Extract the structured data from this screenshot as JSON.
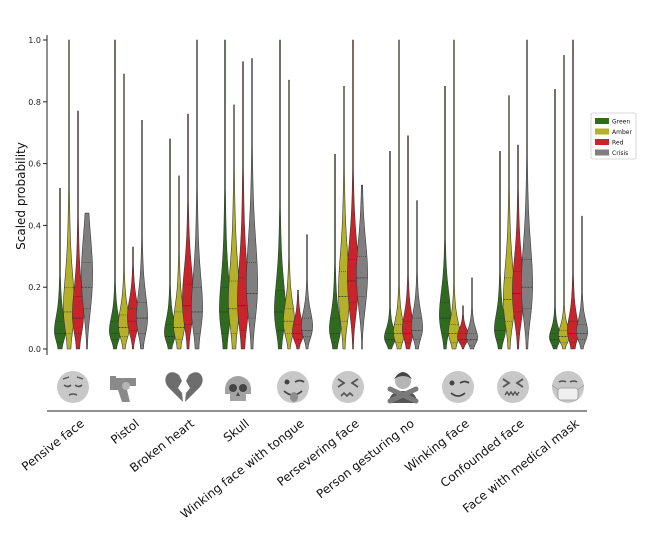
{
  "chart_data": {
    "type": "violin",
    "ylabel": "Scaled probability",
    "ylim": [
      0,
      1.0
    ],
    "yticks": [
      "0.0",
      "0.2",
      "0.4",
      "0.6",
      "0.8",
      "1.0"
    ],
    "grid": false,
    "legend_position": "right",
    "categories": [
      "Pensive face",
      "Pistol",
      "Broken heart",
      "Skull",
      "Winking face with tongue",
      "Persevering face",
      "Person gesturing no",
      "Winking face",
      "Confounded face",
      "Face with medical mask"
    ],
    "category_icons": [
      "pensive-face-emoji",
      "pistol-emoji",
      "broken-heart-emoji",
      "skull-emoji",
      "winking-face-with-tongue-emoji",
      "persevering-face-emoji",
      "person-gesturing-no-emoji",
      "winking-face-emoji",
      "confounded-face-emoji",
      "face-with-medical-mask-emoji"
    ],
    "series": [
      {
        "name": "Green",
        "color": "#2e6b1e",
        "data": [
          {
            "min": 0.0,
            "max": 0.52,
            "median": 0.05,
            "q1": 0.02,
            "q3": 0.09,
            "mode": 0.04
          },
          {
            "min": 0.0,
            "max": 1.0,
            "median": 0.05,
            "q1": 0.03,
            "q3": 0.09,
            "mode": 0.05
          },
          {
            "min": 0.0,
            "max": 0.68,
            "median": 0.04,
            "q1": 0.02,
            "q3": 0.08,
            "mode": 0.04
          },
          {
            "min": 0.0,
            "max": 1.0,
            "median": 0.12,
            "q1": 0.05,
            "q3": 0.2,
            "mode": 0.09
          },
          {
            "min": 0.0,
            "max": 1.0,
            "median": 0.12,
            "q1": 0.06,
            "q3": 0.19,
            "mode": 0.1
          },
          {
            "min": 0.0,
            "max": 0.63,
            "median": 0.05,
            "q1": 0.02,
            "q3": 0.1,
            "mode": 0.04
          },
          {
            "min": 0.0,
            "max": 0.64,
            "median": 0.03,
            "q1": 0.01,
            "q3": 0.05,
            "mode": 0.03
          },
          {
            "min": 0.0,
            "max": 0.85,
            "median": 0.1,
            "q1": 0.05,
            "q3": 0.15,
            "mode": 0.1
          },
          {
            "min": 0.0,
            "max": 0.64,
            "median": 0.06,
            "q1": 0.03,
            "q3": 0.1,
            "mode": 0.05
          },
          {
            "min": 0.0,
            "max": 0.84,
            "median": 0.03,
            "q1": 0.01,
            "q3": 0.05,
            "mode": 0.03
          }
        ]
      },
      {
        "name": "Amber",
        "color": "#b4b02a",
        "data": [
          {
            "min": 0.0,
            "max": 1.0,
            "median": 0.12,
            "q1": 0.05,
            "q3": 0.2,
            "mode": 0.1
          },
          {
            "min": 0.0,
            "max": 0.89,
            "median": 0.07,
            "q1": 0.04,
            "q3": 0.11,
            "mode": 0.07
          },
          {
            "min": 0.0,
            "max": 0.56,
            "median": 0.07,
            "q1": 0.03,
            "q3": 0.12,
            "mode": 0.06
          },
          {
            "min": 0.0,
            "max": 0.79,
            "median": 0.13,
            "q1": 0.05,
            "q3": 0.22,
            "mode": 0.12
          },
          {
            "min": 0.0,
            "max": 0.87,
            "median": 0.09,
            "q1": 0.05,
            "q3": 0.13,
            "mode": 0.08
          },
          {
            "min": 0.0,
            "max": 0.85,
            "median": 0.17,
            "q1": 0.09,
            "q3": 0.25,
            "mode": 0.17
          },
          {
            "min": 0.0,
            "max": 1.0,
            "median": 0.05,
            "q1": 0.02,
            "q3": 0.08,
            "mode": 0.04
          },
          {
            "min": 0.0,
            "max": 1.0,
            "median": 0.05,
            "q1": 0.02,
            "q3": 0.08,
            "mode": 0.04
          },
          {
            "min": 0.0,
            "max": 0.82,
            "median": 0.16,
            "q1": 0.09,
            "q3": 0.23,
            "mode": 0.15
          },
          {
            "min": 0.0,
            "max": 0.95,
            "median": 0.04,
            "q1": 0.02,
            "q3": 0.06,
            "mode": 0.04
          }
        ]
      },
      {
        "name": "Red",
        "color": "#c9232b",
        "data": [
          {
            "min": 0.0,
            "max": 0.77,
            "median": 0.1,
            "q1": 0.05,
            "q3": 0.17,
            "mode": 0.09
          },
          {
            "min": 0.0,
            "max": 0.33,
            "median": 0.09,
            "q1": 0.06,
            "q3": 0.13,
            "mode": 0.1
          },
          {
            "min": 0.0,
            "max": 0.76,
            "median": 0.14,
            "q1": 0.08,
            "q3": 0.21,
            "mode": 0.15
          },
          {
            "min": 0.0,
            "max": 0.93,
            "median": 0.14,
            "q1": 0.06,
            "q3": 0.23,
            "mode": 0.12
          },
          {
            "min": 0.0,
            "max": 0.19,
            "median": 0.05,
            "q1": 0.03,
            "q3": 0.08,
            "mode": 0.05
          },
          {
            "min": 0.0,
            "max": 1.0,
            "median": 0.22,
            "q1": 0.15,
            "q3": 0.29,
            "mode": 0.23
          },
          {
            "min": 0.0,
            "max": 0.69,
            "median": 0.05,
            "q1": 0.02,
            "q3": 0.09,
            "mode": 0.05
          },
          {
            "min": 0.0,
            "max": 0.14,
            "median": 0.03,
            "q1": 0.02,
            "q3": 0.05,
            "mode": 0.04
          },
          {
            "min": 0.0,
            "max": 0.66,
            "median": 0.18,
            "q1": 0.12,
            "q3": 0.25,
            "mode": 0.18
          },
          {
            "min": 0.0,
            "max": 1.0,
            "median": 0.05,
            "q1": 0.02,
            "q3": 0.09,
            "mode": 0.04
          }
        ]
      },
      {
        "name": "Crisis",
        "color": "#7f7f7f",
        "data": [
          {
            "min": 0.0,
            "max": 0.44,
            "median": 0.2,
            "q1": 0.13,
            "q3": 0.28,
            "mode": 0.24
          },
          {
            "min": 0.0,
            "max": 0.74,
            "median": 0.1,
            "q1": 0.05,
            "q3": 0.15,
            "mode": 0.09
          },
          {
            "min": 0.0,
            "max": 1.0,
            "median": 0.12,
            "q1": 0.05,
            "q3": 0.2,
            "mode": 0.1
          },
          {
            "min": 0.0,
            "max": 0.94,
            "median": 0.18,
            "q1": 0.1,
            "q3": 0.28,
            "mode": 0.2
          },
          {
            "min": 0.0,
            "max": 0.37,
            "median": 0.06,
            "q1": 0.04,
            "q3": 0.1,
            "mode": 0.07
          },
          {
            "min": 0.0,
            "max": 0.53,
            "median": 0.23,
            "q1": 0.17,
            "q3": 0.3,
            "mode": 0.24
          },
          {
            "min": 0.0,
            "max": 0.48,
            "median": 0.06,
            "q1": 0.03,
            "q3": 0.1,
            "mode": 0.06
          },
          {
            "min": 0.0,
            "max": 0.23,
            "median": 0.03,
            "q1": 0.01,
            "q3": 0.05,
            "mode": 0.03
          },
          {
            "min": 0.0,
            "max": 1.0,
            "median": 0.2,
            "q1": 0.13,
            "q3": 0.29,
            "mode": 0.2
          },
          {
            "min": 0.0,
            "max": 0.43,
            "median": 0.05,
            "q1": 0.03,
            "q3": 0.08,
            "mode": 0.05
          }
        ]
      }
    ]
  }
}
